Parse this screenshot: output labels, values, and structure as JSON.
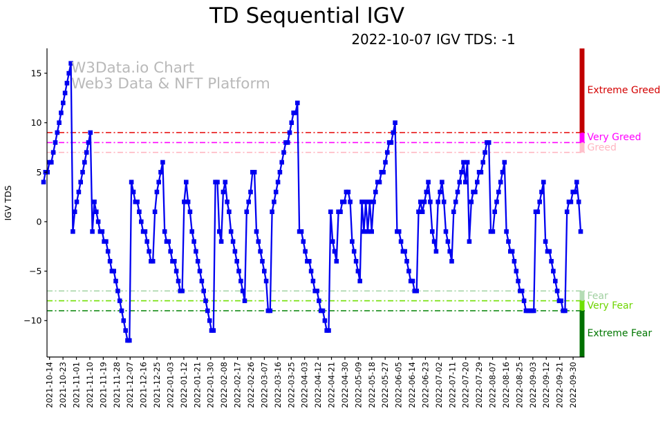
{
  "title": "TD Sequential IGV",
  "subtitle": "2022-10-07 IGV TDS: -1",
  "watermark": {
    "line1": "W3Data.io Chart",
    "line2": "Web3 Data & NFT Platform"
  },
  "chart_data": {
    "type": "line",
    "title": "TD Sequential IGV",
    "subtitle": "2022-10-07 IGV TDS: -1",
    "xlabel": "",
    "ylabel": "IGV TDS",
    "ylim": [
      -13.7,
      17.5
    ],
    "yticks": [
      -10,
      -5,
      0,
      5,
      10,
      15
    ],
    "grid": false,
    "legend": "none",
    "xtick_labels": [
      "2021-10-14",
      "2021-10-23",
      "2021-11-01",
      "2021-11-10",
      "2021-11-19",
      "2021-11-28",
      "2021-12-07",
      "2021-12-16",
      "2021-12-25",
      "2022-01-03",
      "2022-01-12",
      "2022-01-21",
      "2022-01-30",
      "2022-02-08",
      "2022-02-17",
      "2022-02-26",
      "2022-03-07",
      "2022-03-16",
      "2022-03-25",
      "2022-04-03",
      "2022-04-12",
      "2022-04-21",
      "2022-04-30",
      "2022-05-09",
      "2022-05-18",
      "2022-05-27",
      "2022-06-05",
      "2022-06-14",
      "2022-06-23",
      "2022-07-02",
      "2022-07-11",
      "2022-07-20",
      "2022-07-29",
      "2022-08-07",
      "2022-08-16",
      "2022-08-25",
      "2022-09-03",
      "2022-09-12",
      "2022-09-21",
      "2022-09-30"
    ],
    "series": [
      {
        "name": "IGV TDS",
        "color": "#0000f0",
        "marker": "square",
        "values": [
          4,
          5,
          5,
          6,
          6,
          7,
          8,
          9,
          10,
          11,
          12,
          13,
          14,
          15,
          16,
          -1,
          1,
          2,
          3,
          4,
          5,
          6,
          7,
          8,
          9,
          -1,
          2,
          1,
          0,
          -1,
          -1,
          -2,
          -2,
          -3,
          -4,
          -5,
          -5,
          -6,
          -7,
          -8,
          -9,
          -10,
          -11,
          -12,
          -12,
          4,
          3,
          2,
          2,
          1,
          0,
          -1,
          -1,
          -2,
          -3,
          -4,
          -4,
          1,
          3,
          4,
          5,
          6,
          -1,
          -2,
          -2,
          -3,
          -4,
          -4,
          -5,
          -6,
          -7,
          -7,
          2,
          4,
          2,
          1,
          -1,
          -2,
          -3,
          -4,
          -5,
          -6,
          -7,
          -8,
          -9,
          -10,
          -11,
          -11,
          4,
          4,
          -1,
          -2,
          3,
          4,
          2,
          1,
          -1,
          -2,
          -3,
          -4,
          -5,
          -6,
          -7,
          -8,
          1,
          2,
          3,
          5,
          5,
          -1,
          -2,
          -3,
          -4,
          -5,
          -6,
          -9,
          -9,
          1,
          2,
          3,
          4,
          5,
          6,
          7,
          8,
          8,
          9,
          10,
          11,
          11,
          12,
          -1,
          -1,
          -2,
          -3,
          -4,
          -4,
          -5,
          -6,
          -7,
          -7,
          -8,
          -9,
          -9,
          -10,
          -11,
          -11,
          1,
          -2,
          -3,
          -4,
          1,
          1,
          2,
          2,
          3,
          3,
          2,
          -2,
          -3,
          -4,
          -5,
          -6,
          2,
          -1,
          2,
          -1,
          2,
          -1,
          2,
          3,
          4,
          4,
          5,
          5,
          6,
          7,
          8,
          8,
          9,
          10,
          -1,
          -1,
          -2,
          -3,
          -3,
          -4,
          -5,
          -6,
          -6,
          -7,
          -7,
          1,
          2,
          1,
          2,
          3,
          4,
          2,
          -1,
          -2,
          -3,
          2,
          3,
          4,
          2,
          -1,
          -2,
          -3,
          -4,
          1,
          2,
          3,
          4,
          5,
          6,
          4,
          6,
          -2,
          2,
          3,
          3,
          4,
          5,
          5,
          6,
          7,
          8,
          8,
          -1,
          -1,
          1,
          2,
          3,
          4,
          5,
          6,
          -1,
          -2,
          -3,
          -3,
          -4,
          -5,
          -6,
          -7,
          -7,
          -8,
          -9,
          -9,
          -9,
          -9,
          -9,
          1,
          1,
          2,
          3,
          4,
          -2,
          -3,
          -3,
          -4,
          -5,
          -6,
          -7,
          -8,
          -8,
          -9,
          -9,
          1,
          2,
          2,
          3,
          3,
          4,
          2,
          -1
        ]
      }
    ],
    "threshold_lines": [
      {
        "label": "Extreme Greed",
        "value": 9,
        "color": "#e60000"
      },
      {
        "label": "Very Greed",
        "value": 8,
        "color": "#ff00ff"
      },
      {
        "label": "Greed",
        "value": 7,
        "color": "#ffb6c1"
      },
      {
        "label": "Fear",
        "value": -7,
        "color": "#a8d5a8"
      },
      {
        "label": "Very Fear",
        "value": -8,
        "color": "#70e000"
      },
      {
        "label": "Extreme Fear",
        "value": -9,
        "color": "#008000"
      }
    ],
    "bands": [
      {
        "label": "Extreme Greed",
        "from": 9,
        "to": 17.5,
        "color": "#c00000",
        "label_color": "#d40000"
      },
      {
        "label": "Very Greed",
        "from": 8,
        "to": 9,
        "color": "#ff00ff",
        "label_color": "#ff00ff"
      },
      {
        "label": "Greed",
        "from": 7,
        "to": 8,
        "color": "#ffc0cb",
        "label_color": "#ffb6c1"
      },
      {
        "label": "Fear",
        "from": -8,
        "to": -7,
        "color": "#b4dcb4",
        "label_color": "#a0cfa0"
      },
      {
        "label": "Very Fear",
        "from": -9,
        "to": -8,
        "color": "#70e000",
        "label_color": "#6ed500"
      },
      {
        "label": "Extreme Fear",
        "from": -13.7,
        "to": -9,
        "color": "#007000",
        "label_color": "#007700"
      }
    ]
  }
}
